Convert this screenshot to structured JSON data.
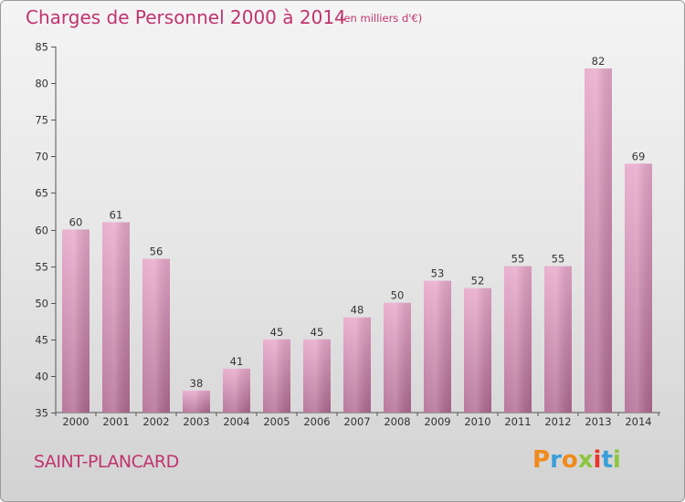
{
  "chart_data": {
    "type": "bar",
    "title": "Charges de Personnel 2000 à 2014",
    "subtitle": "(en milliers d'€)",
    "categories": [
      "2000",
      "2001",
      "2002",
      "2003",
      "2004",
      "2005",
      "2006",
      "2007",
      "2008",
      "2009",
      "2010",
      "2011",
      "2012",
      "2013",
      "2014"
    ],
    "values": [
      60,
      61,
      56,
      38,
      41,
      45,
      45,
      48,
      50,
      53,
      52,
      55,
      55,
      82,
      69
    ],
    "ylim": [
      35,
      85
    ],
    "yticks": [
      35,
      40,
      45,
      50,
      55,
      60,
      65,
      70,
      75,
      80,
      85
    ],
    "grid": false,
    "bar_color": "#d98cb3"
  },
  "commune": "SAINT-PLANCARD",
  "logo": {
    "letters": [
      "P",
      "r",
      "o",
      "x",
      "i",
      "t",
      "i"
    ],
    "colors": [
      "#f08a1c",
      "#3a9fd8",
      "#f08a1c",
      "#8dc63f",
      "#e8352a",
      "#3a9fd8",
      "#8dc63f"
    ]
  }
}
